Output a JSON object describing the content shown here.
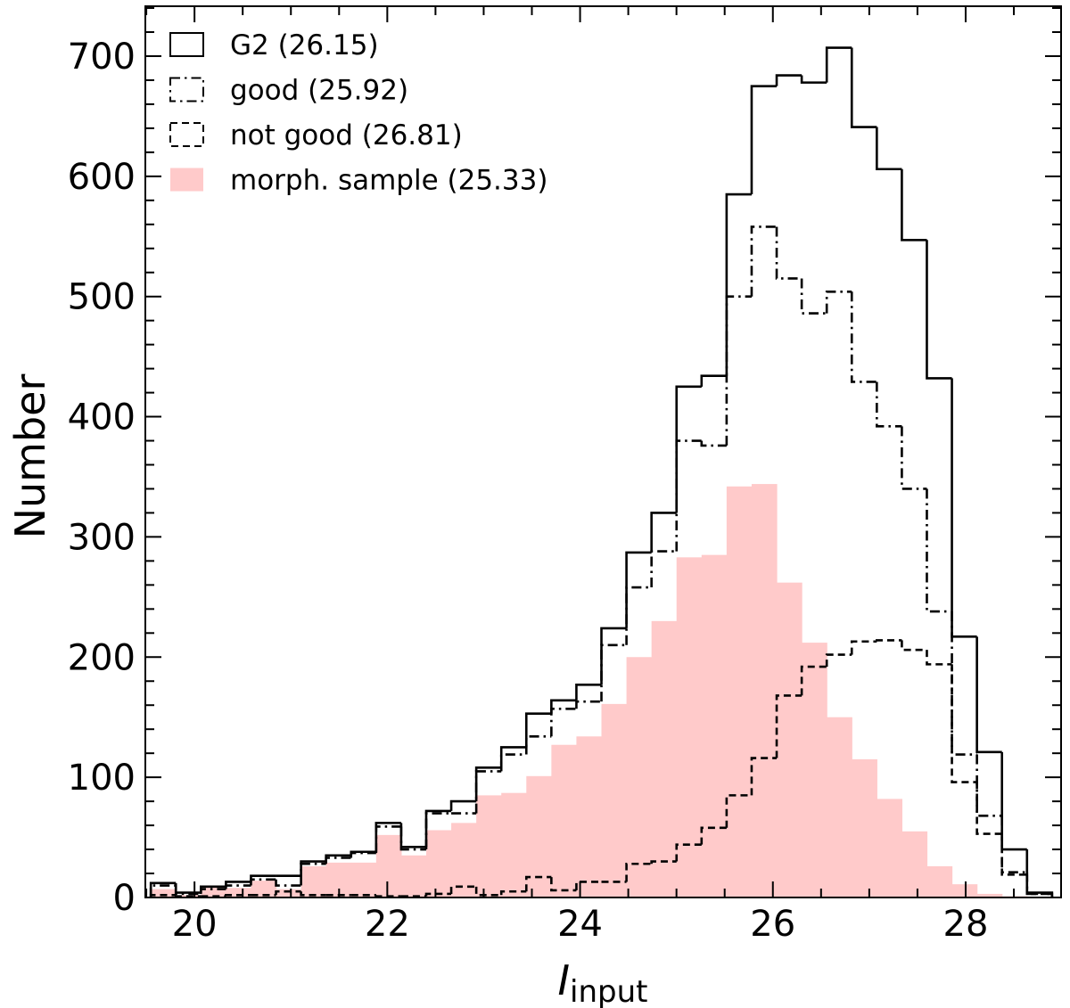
{
  "chart_data": {
    "type": "histogram",
    "xlabel_main": "I",
    "xlabel_sub": "input",
    "ylabel": "Number",
    "xlim": [
      19.49,
      28.99
    ],
    "ylim": [
      0,
      741.5
    ],
    "x_major_ticks": [
      20,
      22,
      24,
      26,
      28
    ],
    "x_tick_labels": [
      "20",
      "22",
      "24",
      "26",
      "28"
    ],
    "x_minor_step": 0.5,
    "y_major_ticks": [
      0,
      100,
      200,
      300,
      400,
      500,
      600,
      700
    ],
    "y_tick_labels": [
      "0",
      "100",
      "200",
      "300",
      "400",
      "500",
      "600",
      "700"
    ],
    "y_minor_step": 20,
    "grid": false,
    "legend_position": "top-left",
    "bin_start": 19.547,
    "bin_width": 0.2597,
    "series": [
      {
        "name": "morph. sample (25.33)",
        "style": "filled",
        "color": "#ffcaca",
        "values": [
          7,
          2,
          8,
          8,
          14,
          7,
          26,
          29,
          29,
          52,
          35,
          56,
          62,
          85,
          87,
          101,
          127,
          134,
          161,
          200,
          230,
          283,
          285,
          342,
          344,
          262,
          212,
          150,
          115,
          82,
          55,
          26,
          11,
          3,
          1,
          0
        ]
      },
      {
        "name": "G2 (26.15)",
        "style": "solid",
        "color": "#000000",
        "values": [
          12,
          4,
          9,
          13,
          18,
          18,
          30,
          35,
          38,
          62,
          42,
          72,
          80,
          108,
          125,
          153,
          164,
          177,
          224,
          287,
          320,
          425,
          434,
          585,
          675,
          684,
          678,
          707,
          641,
          606,
          547,
          432,
          217,
          121,
          40,
          4
        ]
      },
      {
        "name": "good (25.92)",
        "style": "dashdot",
        "color": "#000000",
        "values": [
          10,
          3,
          7,
          10,
          15,
          10,
          28,
          33,
          37,
          59,
          40,
          70,
          70,
          105,
          119,
          134,
          157,
          163,
          210,
          258,
          288,
          380,
          376,
          500,
          558,
          515,
          486,
          504,
          429,
          392,
          340,
          238,
          119,
          68,
          21,
          3
        ]
      },
      {
        "name": "not good (26.81)",
        "style": "dashed",
        "color": "#000000",
        "values": [
          2,
          1,
          1,
          2,
          2,
          5,
          2,
          2,
          2,
          1,
          1,
          3,
          9,
          2,
          5,
          17,
          6,
          13,
          13,
          28,
          30,
          44,
          58,
          85,
          116,
          168,
          192,
          202,
          213,
          214,
          206,
          194,
          96,
          53,
          19,
          3
        ]
      }
    ],
    "legend_order": [
      1,
      2,
      3,
      0
    ]
  }
}
